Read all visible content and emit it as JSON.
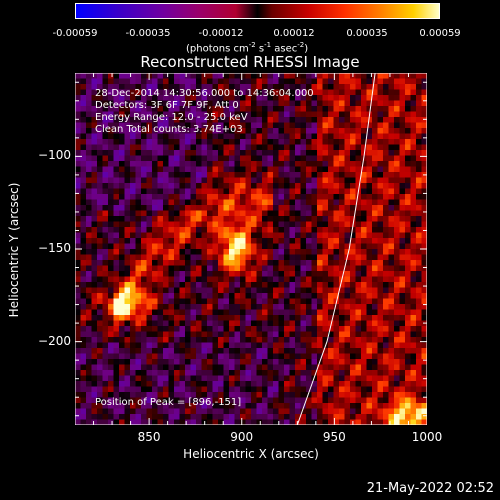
{
  "colorbar": {
    "ticks": [
      "-0.00059",
      "-0.00035",
      "-0.00012",
      "0.00012",
      "0.00035",
      "0.00059"
    ],
    "unit_main": "(photons cm",
    "unit_exp1": "-2",
    "unit_mid": " s",
    "unit_exp2": "-1",
    "unit_mid2": " asec",
    "unit_exp3": "-2",
    "unit_end": ")"
  },
  "annotations": {
    "time": "28-Dec-2014 14:30:56.000 to 14:36:04.000",
    "detectors": "Detectors: 3F 6F 7F 9F, Att 0",
    "energy": "Energy Range: 12.0 - 25.0 keV",
    "clean": "Clean    Total counts: 3.74E+03",
    "peak": "Position of Peak = [896,-151]"
  },
  "footer": {
    "timestamp": "21-May-2022 02:52"
  },
  "chart_data": {
    "type": "heatmap",
    "title": "Reconstructed RHESSI Image",
    "xlabel": "Heliocentric X (arcsec)",
    "ylabel": "Heliocentric Y (arcsec)",
    "xlim": [
      810,
      1000
    ],
    "ylim": [
      -245,
      -55
    ],
    "x_ticks": [
      850,
      900,
      950,
      1000
    ],
    "y_ticks": [
      -100,
      -150,
      -200
    ],
    "y_tick_labels": [
      "−100",
      "−150",
      "−200"
    ],
    "x_tick_labels": [
      "850",
      "900",
      "950",
      "1000"
    ],
    "color_range": [
      -0.00059,
      0.00059
    ],
    "peak": [
      896,
      -151
    ],
    "limb_curve": [
      [
        972,
        -55
      ],
      [
        966,
        -100
      ],
      [
        958,
        -150
      ],
      [
        946,
        -200
      ],
      [
        930,
        -245
      ]
    ],
    "sources": [
      {
        "x": 897,
        "y": -150,
        "intensity": 1.0,
        "sx": 7,
        "sy": 9
      },
      {
        "x": 838,
        "y": -180,
        "intensity": 0.75,
        "sx": 10,
        "sy": 6
      },
      {
        "x": 990,
        "y": -240,
        "intensity": 0.8,
        "sx": 8,
        "sy": 6
      }
    ]
  }
}
